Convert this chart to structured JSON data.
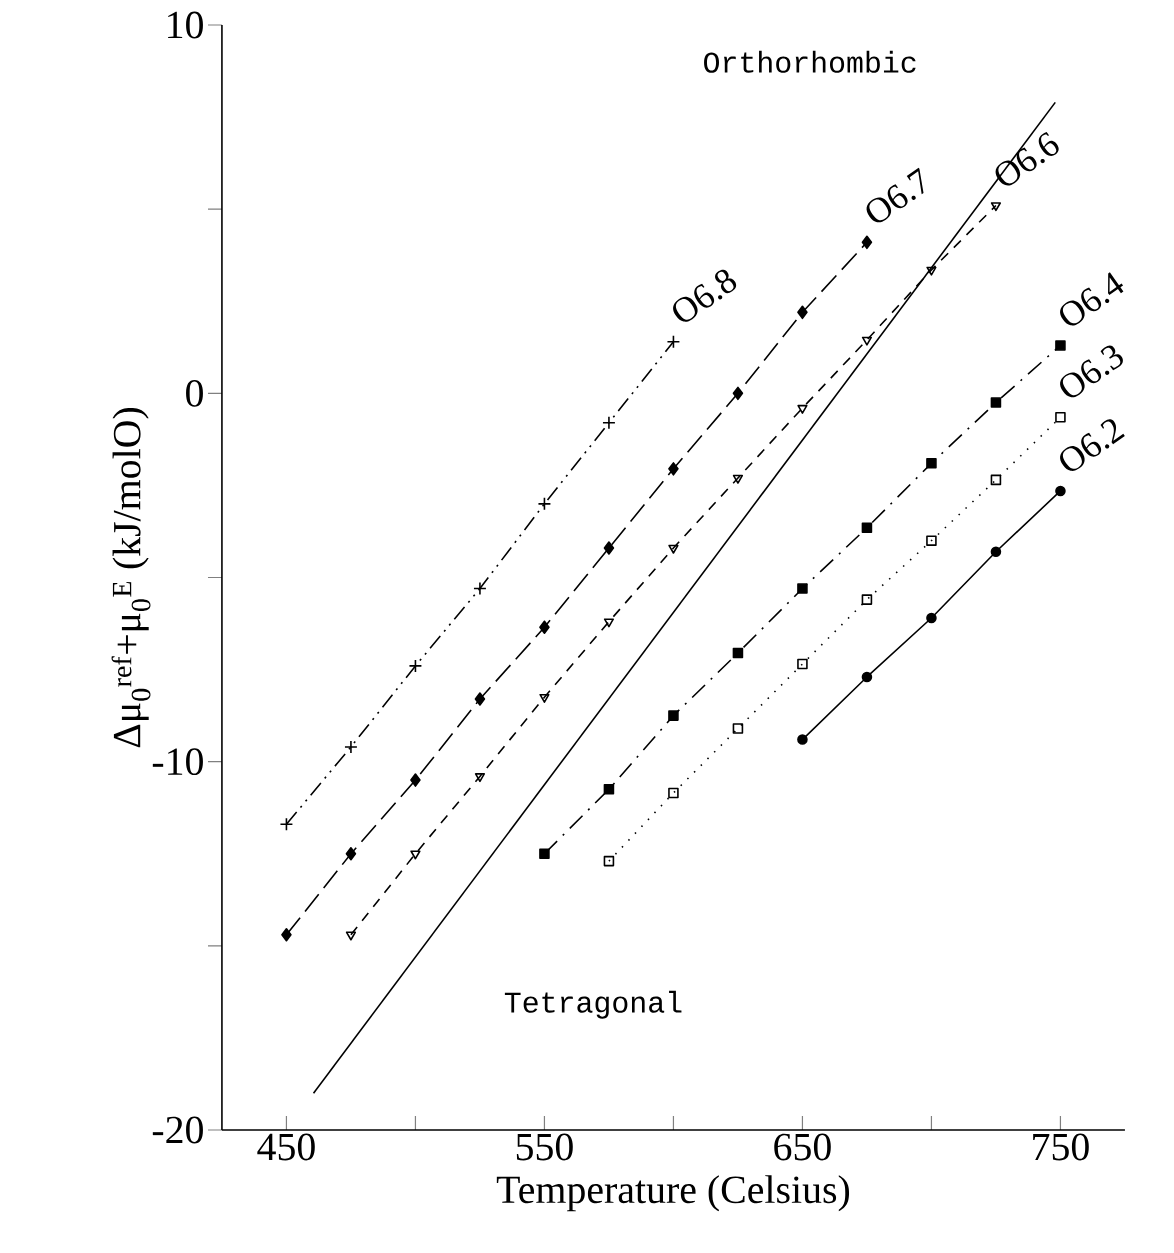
{
  "chart_data": {
    "type": "line",
    "xlabel": "Temperature (Celsius)",
    "ylabel": "Δμ$_{0}$$^{ref}$+μ$_{0}$$^{E}$ (kJ/molO)",
    "xlim": [
      425,
      775
    ],
    "ylim": [
      -20,
      10
    ],
    "xticks": [
      450,
      {
        "value": 500,
        "label": null
      },
      550,
      {
        "value": 600,
        "label": null
      },
      650,
      {
        "value": 700,
        "label": null
      },
      750
    ],
    "yticks": [
      -20,
      {
        "value": -15,
        "label": null
      },
      -10,
      {
        "value": -5,
        "label": null
      },
      0,
      {
        "value": 5,
        "label": null
      },
      10
    ],
    "grid": false,
    "annotations": [
      "Orthorhombic",
      "Tetragonal"
    ],
    "series": [
      {
        "name": "O6.8",
        "color": "#000000",
        "marker": "cross",
        "line_style": "dashdotdot",
        "x": [
          450,
          475,
          500,
          525,
          550,
          575,
          600
        ],
        "values": [
          -11.7,
          -9.6,
          -7.4,
          -5.3,
          -3.0,
          -0.8,
          1.4
        ]
      },
      {
        "name": "O6.7",
        "color": "#000000",
        "marker": "diamond",
        "line_style": "longdashed",
        "x": [
          450,
          475,
          500,
          525,
          550,
          575,
          600,
          625,
          650,
          675
        ],
        "values": [
          -14.7,
          -12.5,
          -10.5,
          -8.3,
          -6.35,
          -4.2,
          -2.05,
          0.0,
          2.2,
          4.1
        ]
      },
      {
        "name": "O6.6",
        "color": "#000000",
        "marker": "triangle-open",
        "line_style": "dashed",
        "x": [
          475,
          500,
          525,
          550,
          575,
          600,
          625,
          650,
          675,
          700,
          725
        ],
        "values": [
          -14.7,
          -12.5,
          -10.4,
          -8.25,
          -6.2,
          -4.2,
          -2.3,
          -0.4,
          1.45,
          3.35,
          5.1
        ]
      },
      {
        "name": "O6.4",
        "color": "#000000",
        "marker": "square",
        "line_style": "dashdot",
        "x": [
          550,
          575,
          600,
          625,
          650,
          675,
          700,
          725,
          750
        ],
        "values": [
          -12.5,
          -10.75,
          -8.75,
          -7.05,
          -5.3,
          -3.65,
          -1.9,
          -0.25,
          1.3
        ]
      },
      {
        "name": "O6.3",
        "color": "#000000",
        "marker": "square-open",
        "line_style": "dotted",
        "x": [
          575,
          600,
          625,
          650,
          675,
          700,
          725,
          750
        ],
        "values": [
          -12.7,
          -10.85,
          -9.1,
          -7.35,
          -5.6,
          -4.0,
          -2.35,
          -0.65
        ]
      },
      {
        "name": "O6.2",
        "color": "#000000",
        "marker": "circle",
        "line_style": "solid",
        "x": [
          650,
          675,
          700,
          725,
          750
        ],
        "values": [
          -9.4,
          -7.7,
          -6.1,
          -4.3,
          -2.65
        ]
      },
      {
        "color": "#000000",
        "marker": "none",
        "line_style": "solid",
        "x": [
          460.5,
          748
        ],
        "values": [
          -19.0,
          7.9
        ]
      }
    ]
  }
}
